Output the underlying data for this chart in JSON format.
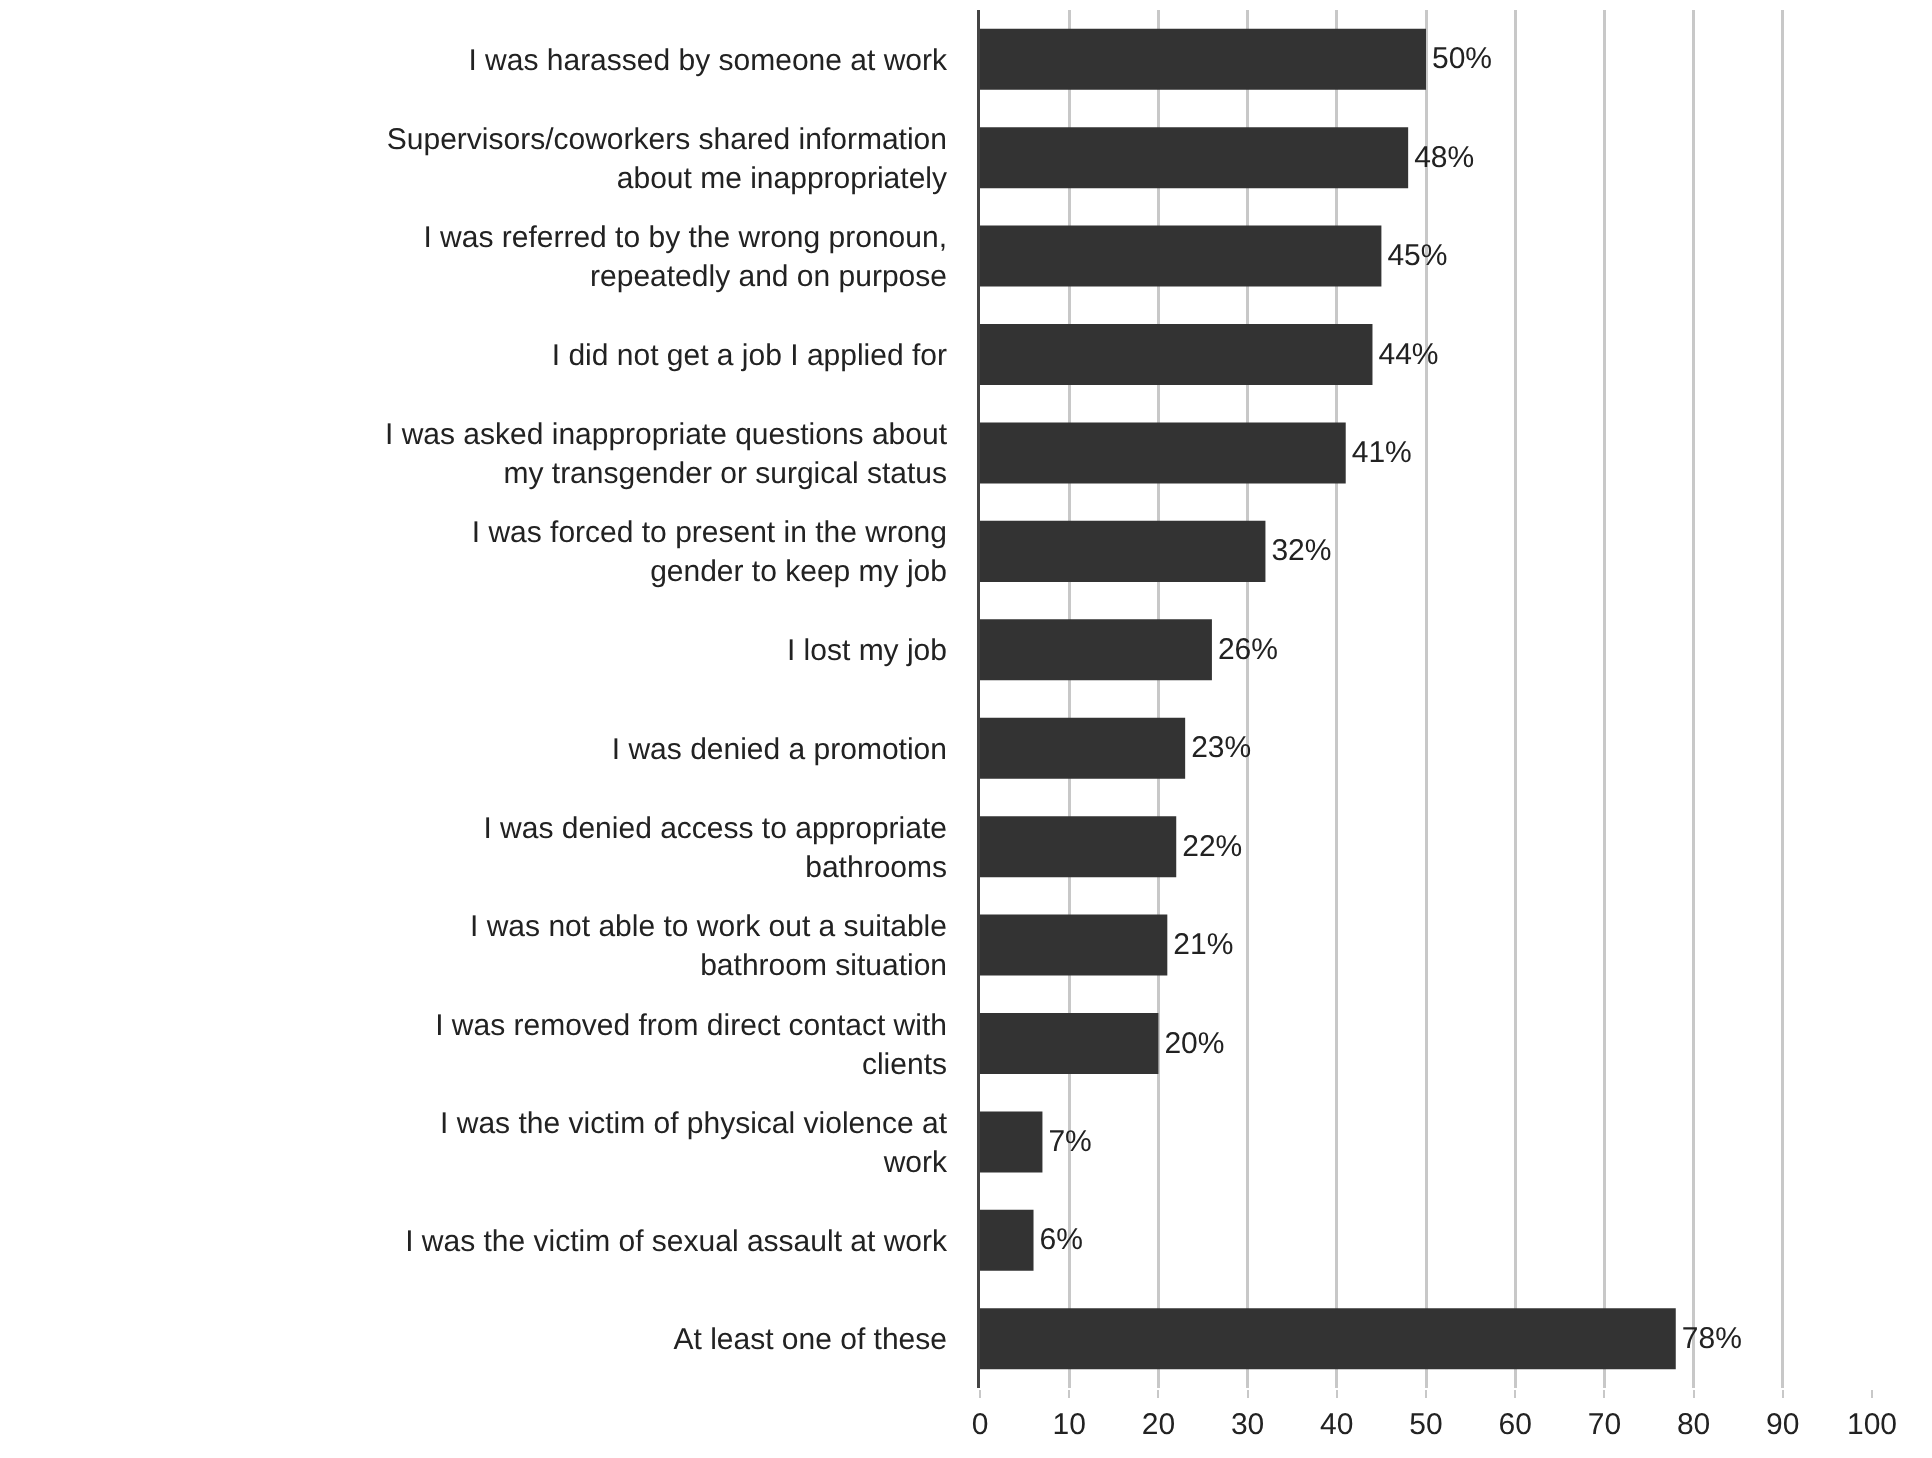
{
  "chart_data": {
    "type": "bar",
    "orientation": "horizontal",
    "categories": [
      "I was harassed by someone at work",
      "Supervisors/coworkers shared information about me inappropriately",
      "I was referred to by the wrong pronoun, repeatedly and on purpose",
      "I did not get a job I applied for",
      "I was asked inappropriate questions about my transgender or surgical status",
      "I was forced to present in the wrong gender to keep my job",
      "I lost my job",
      "I was denied a promotion",
      "I was denied access to appropriate bathrooms",
      "I was not able to work out a suitable bathroom situation",
      "I was removed from direct contact with clients",
      "I was the victim of physical violence at work",
      "I was the victim of sexual assault at work",
      "At least one of these"
    ],
    "values": [
      50,
      48,
      45,
      44,
      41,
      32,
      26,
      23,
      22,
      21,
      20,
      7,
      6,
      78
    ],
    "value_labels": [
      "50%",
      "48%",
      "45%",
      "44%",
      "41%",
      "32%",
      "26%",
      "23%",
      "22%",
      "21%",
      "20%",
      "7%",
      "6%",
      "78%"
    ],
    "color": "#333333",
    "xlim": [
      0,
      100
    ],
    "xticks": [
      0,
      10,
      20,
      30,
      40,
      50,
      60,
      70,
      80,
      90,
      100
    ],
    "grid": "x"
  }
}
